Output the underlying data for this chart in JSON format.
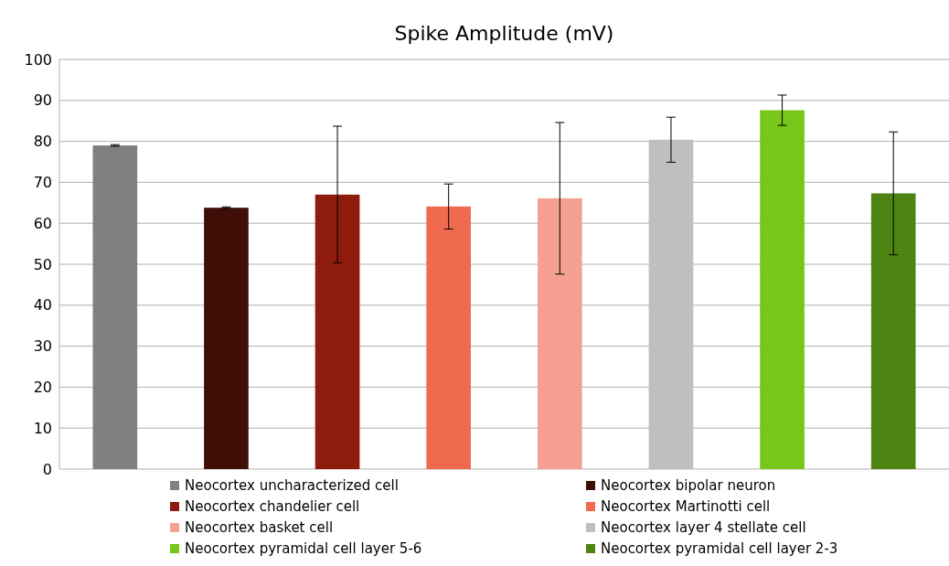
{
  "chart_data": {
    "type": "bar",
    "title": "Spike Amplitude (mV)",
    "categories": [
      null,
      null,
      null,
      null,
      null,
      null,
      null,
      null
    ],
    "series": [
      {
        "name": "Neocortex uncharacterized cell",
        "color": "#808080",
        "values": [
          79,
          null,
          null,
          null,
          null,
          null,
          null,
          null
        ],
        "errors": [
          0.2,
          null,
          null,
          null,
          null,
          null,
          null,
          null
        ]
      },
      {
        "name": "Neocortex bipolar neuron",
        "color": "#3f0f07",
        "values": [
          null,
          63.8,
          null,
          null,
          null,
          null,
          null,
          null
        ],
        "errors": [
          null,
          0.2,
          null,
          null,
          null,
          null,
          null,
          null
        ]
      },
      {
        "name": "Neocortex chandelier cell",
        "color": "#8e1b0c",
        "values": [
          null,
          null,
          67,
          null,
          null,
          null,
          null,
          null
        ],
        "errors": [
          null,
          null,
          16.7,
          null,
          null,
          null,
          null,
          null
        ]
      },
      {
        "name": "Neocortex Martinotti cell",
        "color": "#f06a50",
        "values": [
          null,
          null,
          null,
          64.1,
          null,
          null,
          null,
          null
        ],
        "errors": [
          null,
          null,
          null,
          5.5,
          null,
          null,
          null,
          null
        ]
      },
      {
        "name": "Neocortex basket cell",
        "color": "#f5a090",
        "values": [
          null,
          null,
          null,
          null,
          66.1,
          null,
          null,
          null
        ],
        "errors": [
          null,
          null,
          null,
          null,
          18.5,
          null,
          null,
          null
        ]
      },
      {
        "name": "Neocortex layer 4 stellate cell",
        "color": "#bfbfbf",
        "values": [
          null,
          null,
          null,
          null,
          null,
          80.4,
          null,
          null
        ],
        "errors": [
          null,
          null,
          null,
          null,
          null,
          5.5,
          null,
          null
        ]
      },
      {
        "name": "Neocortex pyramidal cell layer 5-6",
        "color": "#77c61a",
        "values": [
          null,
          null,
          null,
          null,
          null,
          null,
          87.6,
          null
        ],
        "errors": [
          null,
          null,
          null,
          null,
          null,
          null,
          3.7,
          null
        ]
      },
      {
        "name": "Neocortex pyramidal cell layer 2-3",
        "color": "#4e8512",
        "values": [
          null,
          null,
          null,
          null,
          null,
          null,
          null,
          67.3
        ],
        "errors": [
          null,
          null,
          null,
          null,
          null,
          null,
          null,
          15
        ]
      }
    ],
    "ylim": [
      0,
      100
    ],
    "yticks": [
      0,
      10,
      20,
      30,
      40,
      50,
      60,
      70,
      80,
      90,
      100
    ],
    "grid": "y",
    "legend": "bottom",
    "tick_labels": "y"
  }
}
